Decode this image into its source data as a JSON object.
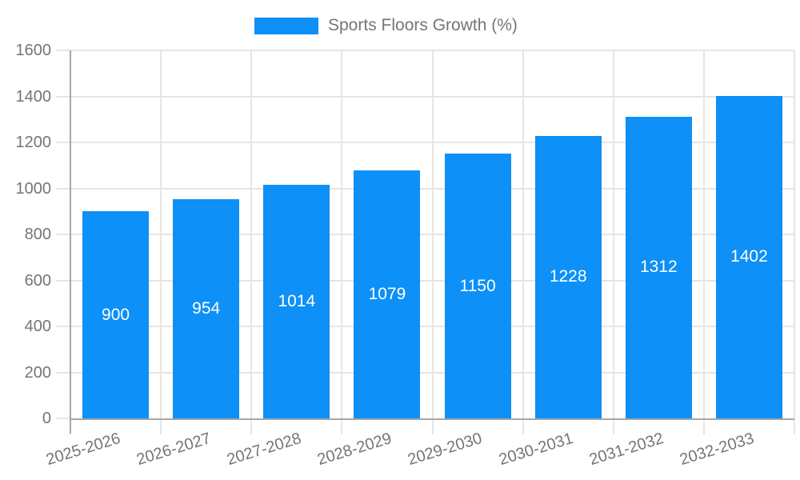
{
  "legend": {
    "label": "Sports Floors Growth (%)"
  },
  "chart_data": {
    "type": "bar",
    "title": "",
    "xlabel": "",
    "ylabel": "",
    "categories": [
      "2025-2026",
      "2026-2027",
      "2027-2028",
      "2028-2029",
      "2029-2030",
      "2030-2031",
      "2031-2032",
      "2032-2033"
    ],
    "series": [
      {
        "name": "Sports Floors Growth (%)",
        "values": [
          900,
          954,
          1014,
          1079,
          1150,
          1228,
          1312,
          1402
        ]
      }
    ],
    "value_labels": [
      "900",
      "954",
      "1014",
      "1079",
      "1150",
      "1228",
      "1312",
      "1402"
    ],
    "yticks": [
      0,
      200,
      400,
      600,
      800,
      1000,
      1200,
      1400,
      1600
    ],
    "ylim": [
      0,
      1600
    ],
    "grid": true,
    "legend_position": "top-center",
    "colors": {
      "bar": "#0d90f7",
      "grid": "#e5e5e5",
      "axis": "#a6a6a6",
      "tick_text": "#757575",
      "value_text": "#ffffff"
    }
  }
}
